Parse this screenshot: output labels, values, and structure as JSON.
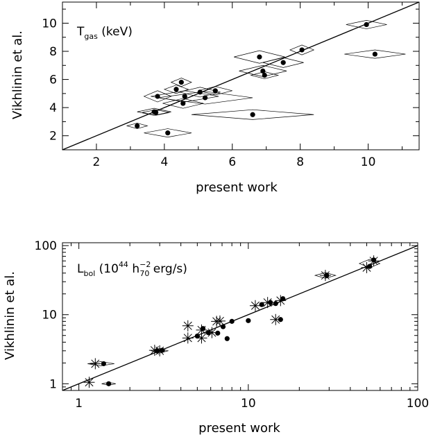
{
  "chart_data": [
    {
      "type": "scatter",
      "title": "",
      "annotation": {
        "main": "T",
        "sub": "gas",
        "rest": " (keV)"
      },
      "xlabel": "present work",
      "ylabel": "Vikhlinin et al.",
      "xlim": [
        1,
        11.5
      ],
      "ylim": [
        1,
        11.5
      ],
      "xticks": [
        2,
        4,
        6,
        8,
        10
      ],
      "yticks": [
        2,
        4,
        6,
        8,
        10
      ],
      "line": "y = x",
      "points": [
        {
          "x": 3.2,
          "y": 2.7,
          "xerr": 0.3,
          "yerr": 0.2
        },
        {
          "x": 4.1,
          "y": 2.2,
          "xerr": 0.7,
          "yerr": 0.3
        },
        {
          "x": 3.7,
          "y": 3.7,
          "xerr": 0.5,
          "yerr": 0.25
        },
        {
          "x": 3.75,
          "y": 3.65,
          "xerr": 0.4,
          "yerr": 0.2
        },
        {
          "x": 3.8,
          "y": 4.8,
          "xerr": 0.4,
          "yerr": 0.4
        },
        {
          "x": 4.35,
          "y": 5.3,
          "xerr": 0.35,
          "yerr": 0.3
        },
        {
          "x": 4.5,
          "y": 5.8,
          "xerr": 0.3,
          "yerr": 0.3
        },
        {
          "x": 4.55,
          "y": 4.3,
          "xerr": 0.6,
          "yerr": 0.35
        },
        {
          "x": 4.6,
          "y": 4.8,
          "xerr": 1.0,
          "yerr": 0.4
        },
        {
          "x": 5.05,
          "y": 5.1,
          "xerr": 0.6,
          "yerr": 0.35
        },
        {
          "x": 5.2,
          "y": 4.7,
          "xerr": 1.4,
          "yerr": 0.45
        },
        {
          "x": 5.5,
          "y": 5.2,
          "xerr": 0.5,
          "yerr": 0.3
        },
        {
          "x": 6.6,
          "y": 3.5,
          "xerr": 1.8,
          "yerr": 0.35
        },
        {
          "x": 6.8,
          "y": 7.6,
          "xerr": 0.75,
          "yerr": 0.45
        },
        {
          "x": 6.9,
          "y": 6.6,
          "xerr": 0.7,
          "yerr": 0.4
        },
        {
          "x": 6.95,
          "y": 6.3,
          "xerr": 0.4,
          "yerr": 0.25
        },
        {
          "x": 7.5,
          "y": 7.2,
          "xerr": 0.6,
          "yerr": 0.35
        },
        {
          "x": 8.05,
          "y": 8.1,
          "xerr": 0.35,
          "yerr": 0.35
        },
        {
          "x": 9.95,
          "y": 9.9,
          "xerr": 0.6,
          "yerr": 0.3
        },
        {
          "x": 10.2,
          "y": 7.8,
          "xerr": 0.9,
          "yerr": 0.3
        }
      ]
    },
    {
      "type": "scatter",
      "title": "",
      "annotation": {
        "main": "L",
        "sub": "bol",
        "rest1": " (10",
        "sup1": "44",
        "rest2": " h",
        "sup2": "−2",
        "sub2": "70",
        "rest3": " erg/s)"
      },
      "xlabel": "present work",
      "ylabel": "Vikhlinin et al.",
      "xscale": "log",
      "yscale": "log",
      "xlim": [
        0.8,
        100
      ],
      "ylim": [
        0.8,
        110
      ],
      "xticks": [
        1,
        10,
        100
      ],
      "xtick_labels": [
        "1",
        "10",
        "100"
      ],
      "yticks": [
        1,
        10,
        100
      ],
      "ytick_labels": [
        "1",
        "10",
        "100"
      ],
      "line": "y = x",
      "dots": [
        {
          "x": 1.4,
          "y": 1.95
        },
        {
          "x": 1.5,
          "y": 1.0
        },
        {
          "x": 2.9,
          "y": 3.0
        },
        {
          "x": 3.1,
          "y": 3.05
        },
        {
          "x": 5.0,
          "y": 4.9
        },
        {
          "x": 5.4,
          "y": 6.3
        },
        {
          "x": 5.8,
          "y": 5.5
        },
        {
          "x": 6.6,
          "y": 5.4
        },
        {
          "x": 7.1,
          "y": 6.7
        },
        {
          "x": 7.5,
          "y": 4.5
        },
        {
          "x": 8.0,
          "y": 8.0
        },
        {
          "x": 10.0,
          "y": 8.2
        },
        {
          "x": 12.0,
          "y": 14.0
        },
        {
          "x": 13.5,
          "y": 15.0
        },
        {
          "x": 14.5,
          "y": 14.5
        },
        {
          "x": 15.5,
          "y": 8.5
        },
        {
          "x": 16.0,
          "y": 17.0
        },
        {
          "x": 29.0,
          "y": 37.0
        },
        {
          "x": 52.0,
          "y": 50.0
        },
        {
          "x": 55.0,
          "y": 62.0
        }
      ],
      "stars": [
        {
          "x": 1.15,
          "y": 1.05
        },
        {
          "x": 1.25,
          "y": 1.95
        },
        {
          "x": 2.8,
          "y": 3.05
        },
        {
          "x": 3.0,
          "y": 3.0
        },
        {
          "x": 4.4,
          "y": 4.6
        },
        {
          "x": 4.4,
          "y": 6.9
        },
        {
          "x": 5.3,
          "y": 4.6
        },
        {
          "x": 5.3,
          "y": 6.0
        },
        {
          "x": 6.1,
          "y": 5.5
        },
        {
          "x": 6.5,
          "y": 8.0
        },
        {
          "x": 6.8,
          "y": 8.1
        },
        {
          "x": 11.0,
          "y": 13.5
        },
        {
          "x": 13.0,
          "y": 15.0
        },
        {
          "x": 14.5,
          "y": 8.5
        },
        {
          "x": 15.5,
          "y": 16.0
        },
        {
          "x": 28.5,
          "y": 37.0
        },
        {
          "x": 50.0,
          "y": 48.0
        },
        {
          "x": 55.0,
          "y": 60.0
        }
      ],
      "boxes": [
        {
          "x": 1.35,
          "y": 1.95,
          "xf": 1.2,
          "yf": 1.07
        },
        {
          "x": 1.5,
          "y": 1.0,
          "xf": 1.1,
          "yf": 1.05
        },
        {
          "x": 3.0,
          "y": 3.0,
          "xf": 1.12,
          "yf": 1.08
        },
        {
          "x": 28.5,
          "y": 37.0,
          "xf": 1.15,
          "yf": 1.1
        },
        {
          "x": 52.0,
          "y": 55.0,
          "xf": 1.15,
          "yf": 1.15
        }
      ]
    }
  ]
}
